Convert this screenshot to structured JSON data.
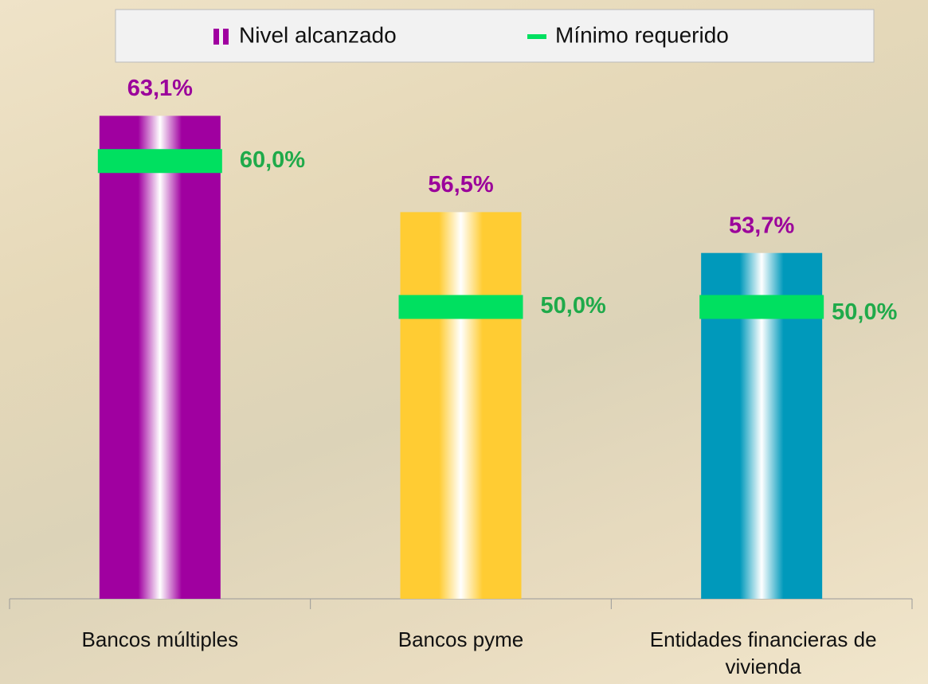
{
  "chart_data": {
    "type": "bar",
    "categories": [
      "Bancos múltiples",
      "Bancos pyme",
      "Entidades financieras de vivienda"
    ],
    "series": [
      {
        "name": "Nivel alcanzado",
        "color": "#a000a0",
        "colors": [
          "#a000a0",
          "#ffcc33",
          "#0099bb"
        ],
        "values": [
          63.1,
          56.5,
          53.7
        ],
        "value_labels": [
          "63,1%",
          "56,5%",
          "53,7%"
        ],
        "label_color": "#9b009b"
      },
      {
        "name": "Mínimo requerido",
        "color": "#00e060",
        "type": "marker",
        "values": [
          60.0,
          50.0,
          50.0
        ],
        "value_labels": [
          "60,0%",
          "50,0%",
          "50,0%"
        ],
        "label_color": "#1faa4a"
      }
    ],
    "ylim": [
      30,
      70
    ],
    "legend": "top"
  }
}
